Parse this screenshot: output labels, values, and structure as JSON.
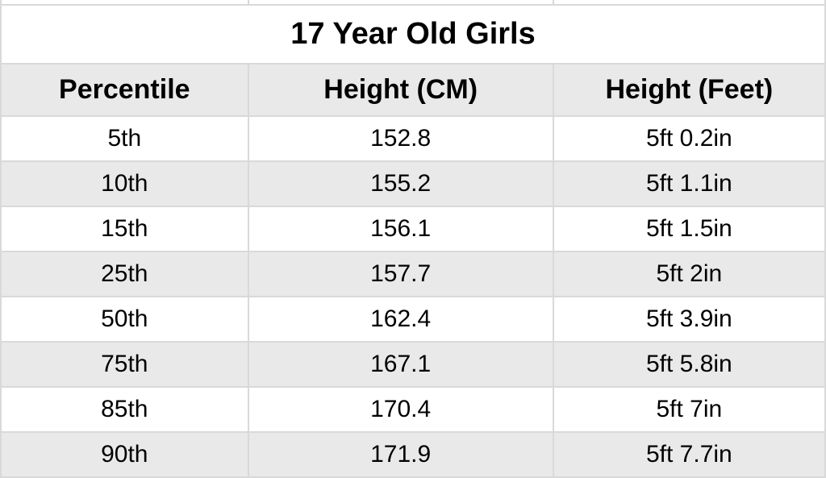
{
  "table": {
    "title": "17 Year Old Girls",
    "columns": [
      "Percentile",
      "Height (CM)",
      "Height (Feet)"
    ],
    "rows": [
      [
        "5th",
        "152.8",
        "5ft 0.2in"
      ],
      [
        "10th",
        "155.2",
        "5ft 1.1in"
      ],
      [
        "15th",
        "156.1",
        "5ft 1.5in"
      ],
      [
        "25th",
        "157.7",
        "5ft 2in"
      ],
      [
        "50th",
        "162.4",
        "5ft 3.9in"
      ],
      [
        "75th",
        "167.1",
        "5ft 5.8in"
      ],
      [
        "85th",
        "170.4",
        "5ft 7in"
      ],
      [
        "90th",
        "171.9",
        "5ft 7.7in"
      ]
    ],
    "title_fontsize": 38,
    "header_fontsize": 34,
    "cell_fontsize": 30,
    "font_family": "Arial",
    "title_weight": 700,
    "header_weight": 700,
    "cell_weight": 400,
    "border_color": "#d9d9d9",
    "stripe_odd_bg": "#ffffff",
    "stripe_even_bg": "#e9e9e9",
    "header_bg": "#e9e9e9",
    "title_bg": "#ffffff",
    "text_color": "#000000",
    "col_widths_pct": [
      30,
      37,
      33
    ]
  }
}
